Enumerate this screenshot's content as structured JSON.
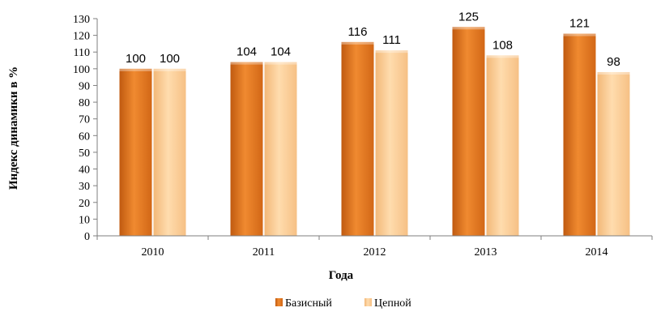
{
  "chart_data": {
    "type": "bar",
    "categories": [
      "2010",
      "2011",
      "2012",
      "2013",
      "2014"
    ],
    "series": [
      {
        "name": "Базисный",
        "values": [
          100,
          104,
          116,
          125,
          121
        ],
        "color": "#e87722"
      },
      {
        "name": "Цепной",
        "values": [
          100,
          104,
          111,
          108,
          98
        ],
        "color": "#fcc98c"
      }
    ],
    "xlabel": "Года",
    "ylabel": "Индекс динамики в  %",
    "ylim": [
      0,
      130
    ],
    "ytick_step": 10,
    "grid": false,
    "legend_position": "bottom"
  }
}
